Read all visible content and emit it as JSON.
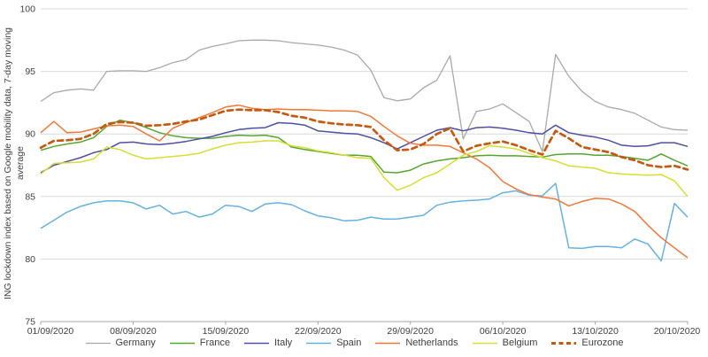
{
  "chart_data": {
    "type": "line",
    "title": "",
    "ylabel": "ING lockdown index based on Google mobility data, 7-day moving average",
    "ylabel_line1": "ING lockdown index based on Google mobility data, 7-day moving",
    "ylabel_line2": "average",
    "xlabel": "",
    "ylim": [
      75,
      100
    ],
    "y_ticks": [
      75,
      80,
      85,
      90,
      95,
      100
    ],
    "grid": true,
    "legend_position": "bottom",
    "x_tick_labels": [
      "01/09/2020",
      "08/09/2020",
      "15/09/2020",
      "22/09/2020",
      "29/09/2020",
      "06/10/2020",
      "13/10/2020",
      "20/10/2020"
    ],
    "x_is_daily_dates": "daily points from 01/09/2020 to 20/10/2020",
    "colors": {
      "grid": "#d9d9d9",
      "axis": "#a6a6a6",
      "text": "#404040"
    },
    "series": [
      {
        "name": "Germany",
        "color": "#a9a9a9",
        "width": 1.3,
        "dash": null,
        "values": [
          92.6,
          93.3,
          93.5,
          93.6,
          93.5,
          95.0,
          95.05,
          95.05,
          95.0,
          95.3,
          95.7,
          95.95,
          96.7,
          97.0,
          97.2,
          97.45,
          97.5,
          97.5,
          97.45,
          97.3,
          97.2,
          97.1,
          96.95,
          96.7,
          96.3,
          95.1,
          92.9,
          92.65,
          92.8,
          93.7,
          94.3,
          96.25,
          89.6,
          91.8,
          92.0,
          92.4,
          91.7,
          91.0,
          88.6,
          96.35,
          94.6,
          93.4,
          92.6,
          92.15,
          91.95,
          91.65,
          91.1,
          90.55,
          90.35,
          90.3
        ]
      },
      {
        "name": "France",
        "color": "#56a531",
        "width": 1.5,
        "dash": null,
        "values": [
          88.7,
          89.0,
          89.2,
          89.35,
          89.7,
          90.6,
          91.1,
          90.9,
          90.5,
          90.1,
          89.85,
          89.7,
          89.65,
          89.65,
          89.8,
          89.9,
          89.85,
          89.9,
          89.7,
          88.95,
          88.75,
          88.6,
          88.45,
          88.3,
          88.3,
          88.2,
          86.95,
          86.9,
          87.1,
          87.6,
          87.85,
          88.0,
          88.1,
          88.25,
          88.3,
          88.25,
          88.25,
          88.2,
          88.15,
          88.35,
          88.4,
          88.4,
          88.3,
          88.3,
          88.2,
          88.05,
          87.9,
          88.4,
          87.9,
          87.45
        ]
      },
      {
        "name": "Italy",
        "color": "#4d4fa1",
        "width": 1.5,
        "dash": null,
        "values": [
          86.9,
          87.5,
          87.8,
          88.1,
          88.5,
          88.75,
          89.3,
          89.35,
          89.2,
          89.15,
          89.25,
          89.4,
          89.6,
          89.8,
          90.1,
          90.35,
          90.45,
          90.5,
          90.9,
          90.85,
          90.7,
          90.25,
          90.15,
          90.05,
          90.0,
          89.7,
          89.3,
          88.8,
          89.3,
          89.8,
          90.3,
          90.5,
          90.25,
          90.5,
          90.55,
          90.45,
          90.3,
          90.1,
          90.0,
          90.7,
          90.1,
          89.9,
          89.75,
          89.5,
          89.1,
          89.0,
          89.05,
          89.3,
          89.3,
          89.0
        ]
      },
      {
        "name": "Spain",
        "color": "#67b1e2",
        "width": 1.5,
        "dash": null,
        "values": [
          82.45,
          83.1,
          83.75,
          84.2,
          84.5,
          84.65,
          84.65,
          84.5,
          84.0,
          84.3,
          83.6,
          83.8,
          83.35,
          83.6,
          84.3,
          84.2,
          83.8,
          84.4,
          84.5,
          84.35,
          83.85,
          83.45,
          83.3,
          83.05,
          83.1,
          83.35,
          83.2,
          83.2,
          83.35,
          83.5,
          84.3,
          84.55,
          84.65,
          84.7,
          84.8,
          85.3,
          85.45,
          85.1,
          85.05,
          86.05,
          80.9,
          80.85,
          81.0,
          81.0,
          80.9,
          81.6,
          81.2,
          79.85,
          84.45,
          83.35
        ]
      },
      {
        "name": "Netherlands",
        "color": "#f0793a",
        "width": 1.5,
        "dash": null,
        "values": [
          90.1,
          91.0,
          90.1,
          90.15,
          90.4,
          90.65,
          90.7,
          90.6,
          90.0,
          89.45,
          90.45,
          90.9,
          91.3,
          91.7,
          92.15,
          92.3,
          92.05,
          91.95,
          92.0,
          91.95,
          91.95,
          91.9,
          91.85,
          91.85,
          91.8,
          91.4,
          90.6,
          89.85,
          89.25,
          89.1,
          89.1,
          89.0,
          88.5,
          88.0,
          87.3,
          86.2,
          85.6,
          85.15,
          84.95,
          84.8,
          84.25,
          84.6,
          84.85,
          84.8,
          84.4,
          83.8,
          82.7,
          81.7,
          80.9,
          80.1
        ]
      },
      {
        "name": "Belgium",
        "color": "#d8dd33",
        "width": 1.5,
        "dash": null,
        "values": [
          86.8,
          87.65,
          87.7,
          87.75,
          88.0,
          88.95,
          88.75,
          88.3,
          88.0,
          88.1,
          88.2,
          88.3,
          88.45,
          88.8,
          89.1,
          89.3,
          89.35,
          89.45,
          89.45,
          89.05,
          88.9,
          88.65,
          88.5,
          88.3,
          88.1,
          88.05,
          86.5,
          85.5,
          85.9,
          86.5,
          86.9,
          87.6,
          88.3,
          88.6,
          89.05,
          88.95,
          88.8,
          88.45,
          88.1,
          87.85,
          87.45,
          87.35,
          87.25,
          86.9,
          86.8,
          86.75,
          86.7,
          86.75,
          86.25,
          85.0
        ]
      },
      {
        "name": "Eurozone",
        "color": "#c45a11",
        "width": 2.7,
        "dash": "6,4.5",
        "values": [
          88.9,
          89.45,
          89.5,
          89.6,
          90.0,
          90.8,
          90.95,
          90.9,
          90.65,
          90.7,
          90.8,
          91.0,
          91.15,
          91.5,
          91.85,
          91.95,
          91.9,
          91.9,
          91.75,
          91.45,
          91.3,
          91.0,
          90.85,
          90.75,
          90.7,
          90.55,
          89.5,
          88.7,
          88.75,
          89.2,
          90.0,
          90.45,
          88.6,
          89.05,
          89.25,
          89.4,
          89.1,
          88.7,
          88.35,
          90.25,
          89.65,
          88.95,
          88.75,
          88.55,
          88.15,
          87.9,
          87.5,
          87.35,
          87.45,
          87.15
        ]
      }
    ]
  },
  "y_axis": {
    "title_line1": "ING lockdown index based on Google mobility data, 7-day moving",
    "title_line2": "average"
  }
}
